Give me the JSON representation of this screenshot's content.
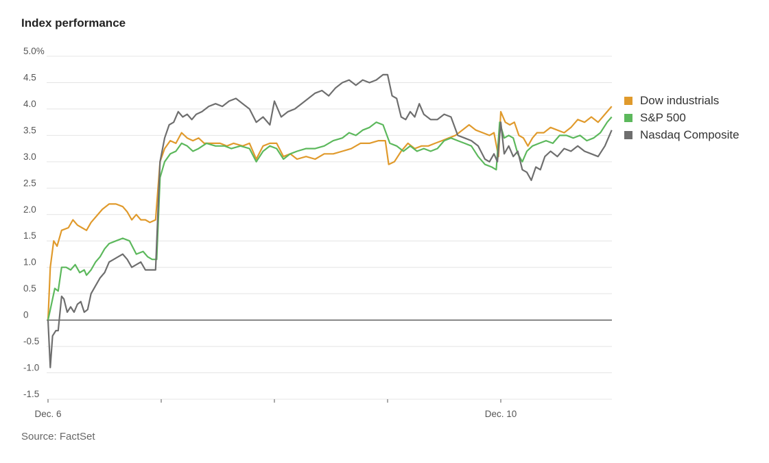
{
  "title": "Index performance",
  "source": "Source: FactSet",
  "colors": {
    "dow": "#e09a2c",
    "sp500": "#5cb85c",
    "nasdaq": "#6e6e6e",
    "grid": "#e4e4e4",
    "zero": "#444444"
  },
  "chart_data": {
    "type": "line",
    "title": "Index performance",
    "xlabel": "",
    "ylabel": "",
    "ylim": [
      -1.5,
      5.0
    ],
    "y_ticks": [
      5.0,
      4.5,
      4.0,
      3.5,
      3.0,
      2.5,
      2.0,
      1.5,
      1.0,
      0.5,
      0,
      -0.5,
      -1.0,
      -1.5
    ],
    "y_tick_labels": [
      "5.0%",
      "4.5",
      "4.0",
      "3.5",
      "3.0",
      "2.5",
      "2.0",
      "1.5",
      "1.0",
      "0.5",
      "0",
      "-0.5",
      "-1.0",
      "-1.5"
    ],
    "x_ticks": [
      0,
      1,
      2,
      3,
      4
    ],
    "x_tick_labels": [
      "Dec. 6",
      "",
      "",
      "",
      "Dec. 10"
    ],
    "xlim": [
      0,
      5
    ],
    "grid": true,
    "legend_position": "right",
    "series": [
      {
        "name": "Dow industrials",
        "color": "#e09a2c",
        "points": [
          [
            0,
            0
          ],
          [
            0.02,
            1.0
          ],
          [
            0.05,
            1.5
          ],
          [
            0.08,
            1.4
          ],
          [
            0.12,
            1.7
          ],
          [
            0.18,
            1.75
          ],
          [
            0.22,
            1.9
          ],
          [
            0.26,
            1.8
          ],
          [
            0.3,
            1.75
          ],
          [
            0.34,
            1.7
          ],
          [
            0.38,
            1.85
          ],
          [
            0.42,
            1.95
          ],
          [
            0.48,
            2.1
          ],
          [
            0.54,
            2.2
          ],
          [
            0.6,
            2.2
          ],
          [
            0.66,
            2.15
          ],
          [
            0.7,
            2.05
          ],
          [
            0.74,
            1.9
          ],
          [
            0.78,
            2.0
          ],
          [
            0.82,
            1.9
          ],
          [
            0.86,
            1.9
          ],
          [
            0.9,
            1.85
          ],
          [
            0.95,
            1.9
          ],
          [
            0.99,
            3.0
          ],
          [
            1.03,
            3.25
          ],
          [
            1.08,
            3.4
          ],
          [
            1.13,
            3.35
          ],
          [
            1.18,
            3.55
          ],
          [
            1.23,
            3.45
          ],
          [
            1.28,
            3.4
          ],
          [
            1.33,
            3.45
          ],
          [
            1.38,
            3.35
          ],
          [
            1.45,
            3.35
          ],
          [
            1.52,
            3.35
          ],
          [
            1.58,
            3.3
          ],
          [
            1.64,
            3.35
          ],
          [
            1.72,
            3.3
          ],
          [
            1.78,
            3.35
          ],
          [
            1.84,
            3.05
          ],
          [
            1.9,
            3.3
          ],
          [
            1.96,
            3.35
          ],
          [
            2.02,
            3.35
          ],
          [
            2.08,
            3.1
          ],
          [
            2.14,
            3.15
          ],
          [
            2.2,
            3.05
          ],
          [
            2.28,
            3.1
          ],
          [
            2.36,
            3.05
          ],
          [
            2.44,
            3.15
          ],
          [
            2.52,
            3.15
          ],
          [
            2.6,
            3.2
          ],
          [
            2.68,
            3.25
          ],
          [
            2.76,
            3.35
          ],
          [
            2.84,
            3.35
          ],
          [
            2.92,
            3.4
          ],
          [
            2.98,
            3.4
          ],
          [
            3.01,
            2.95
          ],
          [
            3.06,
            3.0
          ],
          [
            3.12,
            3.2
          ],
          [
            3.18,
            3.35
          ],
          [
            3.24,
            3.25
          ],
          [
            3.3,
            3.3
          ],
          [
            3.36,
            3.3
          ],
          [
            3.42,
            3.35
          ],
          [
            3.48,
            3.4
          ],
          [
            3.54,
            3.45
          ],
          [
            3.6,
            3.5
          ],
          [
            3.66,
            3.6
          ],
          [
            3.72,
            3.7
          ],
          [
            3.78,
            3.6
          ],
          [
            3.84,
            3.55
          ],
          [
            3.9,
            3.5
          ],
          [
            3.94,
            3.55
          ],
          [
            3.98,
            3.1
          ],
          [
            4.0,
            3.95
          ],
          [
            4.04,
            3.75
          ],
          [
            4.08,
            3.7
          ],
          [
            4.12,
            3.75
          ],
          [
            4.16,
            3.5
          ],
          [
            4.2,
            3.45
          ],
          [
            4.24,
            3.3
          ],
          [
            4.28,
            3.45
          ],
          [
            4.32,
            3.55
          ],
          [
            4.38,
            3.55
          ],
          [
            4.44,
            3.65
          ],
          [
            4.5,
            3.6
          ],
          [
            4.56,
            3.55
          ],
          [
            4.62,
            3.65
          ],
          [
            4.68,
            3.8
          ],
          [
            4.74,
            3.75
          ],
          [
            4.8,
            3.85
          ],
          [
            4.86,
            3.75
          ],
          [
            4.92,
            3.9
          ],
          [
            4.98,
            4.05
          ]
        ]
      },
      {
        "name": "S&P 500",
        "color": "#5cb85c",
        "points": [
          [
            0,
            0
          ],
          [
            0.03,
            0.3
          ],
          [
            0.06,
            0.6
          ],
          [
            0.09,
            0.55
          ],
          [
            0.12,
            1.0
          ],
          [
            0.16,
            1.0
          ],
          [
            0.2,
            0.95
          ],
          [
            0.24,
            1.05
          ],
          [
            0.28,
            0.9
          ],
          [
            0.32,
            0.95
          ],
          [
            0.34,
            0.85
          ],
          [
            0.38,
            0.95
          ],
          [
            0.42,
            1.1
          ],
          [
            0.46,
            1.2
          ],
          [
            0.5,
            1.35
          ],
          [
            0.54,
            1.45
          ],
          [
            0.6,
            1.5
          ],
          [
            0.66,
            1.55
          ],
          [
            0.72,
            1.5
          ],
          [
            0.78,
            1.25
          ],
          [
            0.84,
            1.3
          ],
          [
            0.88,
            1.2
          ],
          [
            0.92,
            1.15
          ],
          [
            0.96,
            1.15
          ],
          [
            0.99,
            2.7
          ],
          [
            1.03,
            3.0
          ],
          [
            1.08,
            3.15
          ],
          [
            1.13,
            3.2
          ],
          [
            1.18,
            3.35
          ],
          [
            1.23,
            3.3
          ],
          [
            1.28,
            3.2
          ],
          [
            1.33,
            3.25
          ],
          [
            1.4,
            3.35
          ],
          [
            1.48,
            3.3
          ],
          [
            1.56,
            3.3
          ],
          [
            1.62,
            3.25
          ],
          [
            1.7,
            3.3
          ],
          [
            1.78,
            3.25
          ],
          [
            1.84,
            3.0
          ],
          [
            1.9,
            3.2
          ],
          [
            1.96,
            3.3
          ],
          [
            2.02,
            3.25
          ],
          [
            2.08,
            3.05
          ],
          [
            2.14,
            3.15
          ],
          [
            2.2,
            3.2
          ],
          [
            2.28,
            3.25
          ],
          [
            2.36,
            3.25
          ],
          [
            2.44,
            3.3
          ],
          [
            2.52,
            3.4
          ],
          [
            2.6,
            3.45
          ],
          [
            2.66,
            3.55
          ],
          [
            2.72,
            3.5
          ],
          [
            2.78,
            3.6
          ],
          [
            2.84,
            3.65
          ],
          [
            2.9,
            3.75
          ],
          [
            2.96,
            3.7
          ],
          [
            3.02,
            3.35
          ],
          [
            3.08,
            3.3
          ],
          [
            3.14,
            3.2
          ],
          [
            3.2,
            3.3
          ],
          [
            3.26,
            3.2
          ],
          [
            3.32,
            3.25
          ],
          [
            3.38,
            3.2
          ],
          [
            3.44,
            3.25
          ],
          [
            3.5,
            3.4
          ],
          [
            3.56,
            3.45
          ],
          [
            3.62,
            3.4
          ],
          [
            3.68,
            3.35
          ],
          [
            3.74,
            3.3
          ],
          [
            3.8,
            3.1
          ],
          [
            3.86,
            2.95
          ],
          [
            3.92,
            2.9
          ],
          [
            3.96,
            2.85
          ],
          [
            3.99,
            3.75
          ],
          [
            4.03,
            3.45
          ],
          [
            4.07,
            3.5
          ],
          [
            4.11,
            3.45
          ],
          [
            4.15,
            3.15
          ],
          [
            4.19,
            3.0
          ],
          [
            4.23,
            3.2
          ],
          [
            4.28,
            3.3
          ],
          [
            4.34,
            3.35
          ],
          [
            4.4,
            3.4
          ],
          [
            4.46,
            3.35
          ],
          [
            4.52,
            3.5
          ],
          [
            4.58,
            3.5
          ],
          [
            4.64,
            3.45
          ],
          [
            4.7,
            3.5
          ],
          [
            4.76,
            3.4
          ],
          [
            4.82,
            3.45
          ],
          [
            4.88,
            3.55
          ],
          [
            4.94,
            3.75
          ],
          [
            4.98,
            3.85
          ]
        ]
      },
      {
        "name": "Nasdaq Composite",
        "color": "#6e6e6e",
        "points": [
          [
            0,
            0
          ],
          [
            0.02,
            -0.9
          ],
          [
            0.04,
            -0.3
          ],
          [
            0.07,
            -0.2
          ],
          [
            0.09,
            -0.2
          ],
          [
            0.12,
            0.45
          ],
          [
            0.14,
            0.4
          ],
          [
            0.17,
            0.15
          ],
          [
            0.2,
            0.25
          ],
          [
            0.23,
            0.15
          ],
          [
            0.26,
            0.3
          ],
          [
            0.29,
            0.35
          ],
          [
            0.32,
            0.15
          ],
          [
            0.35,
            0.2
          ],
          [
            0.38,
            0.5
          ],
          [
            0.42,
            0.65
          ],
          [
            0.46,
            0.8
          ],
          [
            0.5,
            0.9
          ],
          [
            0.54,
            1.1
          ],
          [
            0.58,
            1.15
          ],
          [
            0.62,
            1.2
          ],
          [
            0.66,
            1.25
          ],
          [
            0.7,
            1.15
          ],
          [
            0.74,
            1.0
          ],
          [
            0.78,
            1.05
          ],
          [
            0.82,
            1.1
          ],
          [
            0.86,
            0.95
          ],
          [
            0.9,
            0.95
          ],
          [
            0.95,
            0.95
          ],
          [
            0.99,
            3.0
          ],
          [
            1.03,
            3.45
          ],
          [
            1.07,
            3.7
          ],
          [
            1.11,
            3.75
          ],
          [
            1.15,
            3.95
          ],
          [
            1.19,
            3.85
          ],
          [
            1.23,
            3.9
          ],
          [
            1.27,
            3.8
          ],
          [
            1.31,
            3.9
          ],
          [
            1.36,
            3.95
          ],
          [
            1.42,
            4.05
          ],
          [
            1.48,
            4.1
          ],
          [
            1.54,
            4.05
          ],
          [
            1.6,
            4.15
          ],
          [
            1.66,
            4.2
          ],
          [
            1.72,
            4.1
          ],
          [
            1.78,
            4.0
          ],
          [
            1.84,
            3.75
          ],
          [
            1.9,
            3.85
          ],
          [
            1.96,
            3.7
          ],
          [
            2.0,
            4.15
          ],
          [
            2.06,
            3.85
          ],
          [
            2.12,
            3.95
          ],
          [
            2.18,
            4.0
          ],
          [
            2.24,
            4.1
          ],
          [
            2.3,
            4.2
          ],
          [
            2.36,
            4.3
          ],
          [
            2.42,
            4.35
          ],
          [
            2.48,
            4.25
          ],
          [
            2.54,
            4.4
          ],
          [
            2.6,
            4.5
          ],
          [
            2.66,
            4.55
          ],
          [
            2.72,
            4.45
          ],
          [
            2.78,
            4.55
          ],
          [
            2.84,
            4.5
          ],
          [
            2.9,
            4.55
          ],
          [
            2.96,
            4.65
          ],
          [
            3.0,
            4.65
          ],
          [
            3.04,
            4.25
          ],
          [
            3.08,
            4.2
          ],
          [
            3.12,
            3.85
          ],
          [
            3.16,
            3.8
          ],
          [
            3.2,
            3.95
          ],
          [
            3.24,
            3.85
          ],
          [
            3.28,
            4.1
          ],
          [
            3.32,
            3.9
          ],
          [
            3.38,
            3.8
          ],
          [
            3.44,
            3.8
          ],
          [
            3.5,
            3.9
          ],
          [
            3.56,
            3.85
          ],
          [
            3.62,
            3.5
          ],
          [
            3.68,
            3.45
          ],
          [
            3.74,
            3.4
          ],
          [
            3.8,
            3.3
          ],
          [
            3.86,
            3.05
          ],
          [
            3.9,
            3.0
          ],
          [
            3.94,
            3.15
          ],
          [
            3.97,
            3.0
          ],
          [
            4.0,
            3.75
          ],
          [
            4.03,
            3.15
          ],
          [
            4.07,
            3.3
          ],
          [
            4.11,
            3.1
          ],
          [
            4.15,
            3.2
          ],
          [
            4.19,
            2.85
          ],
          [
            4.23,
            2.8
          ],
          [
            4.27,
            2.65
          ],
          [
            4.31,
            2.9
          ],
          [
            4.35,
            2.85
          ],
          [
            4.39,
            3.1
          ],
          [
            4.44,
            3.2
          ],
          [
            4.5,
            3.1
          ],
          [
            4.56,
            3.25
          ],
          [
            4.62,
            3.2
          ],
          [
            4.68,
            3.3
          ],
          [
            4.74,
            3.2
          ],
          [
            4.8,
            3.15
          ],
          [
            4.86,
            3.1
          ],
          [
            4.92,
            3.3
          ],
          [
            4.98,
            3.6
          ]
        ]
      }
    ]
  }
}
